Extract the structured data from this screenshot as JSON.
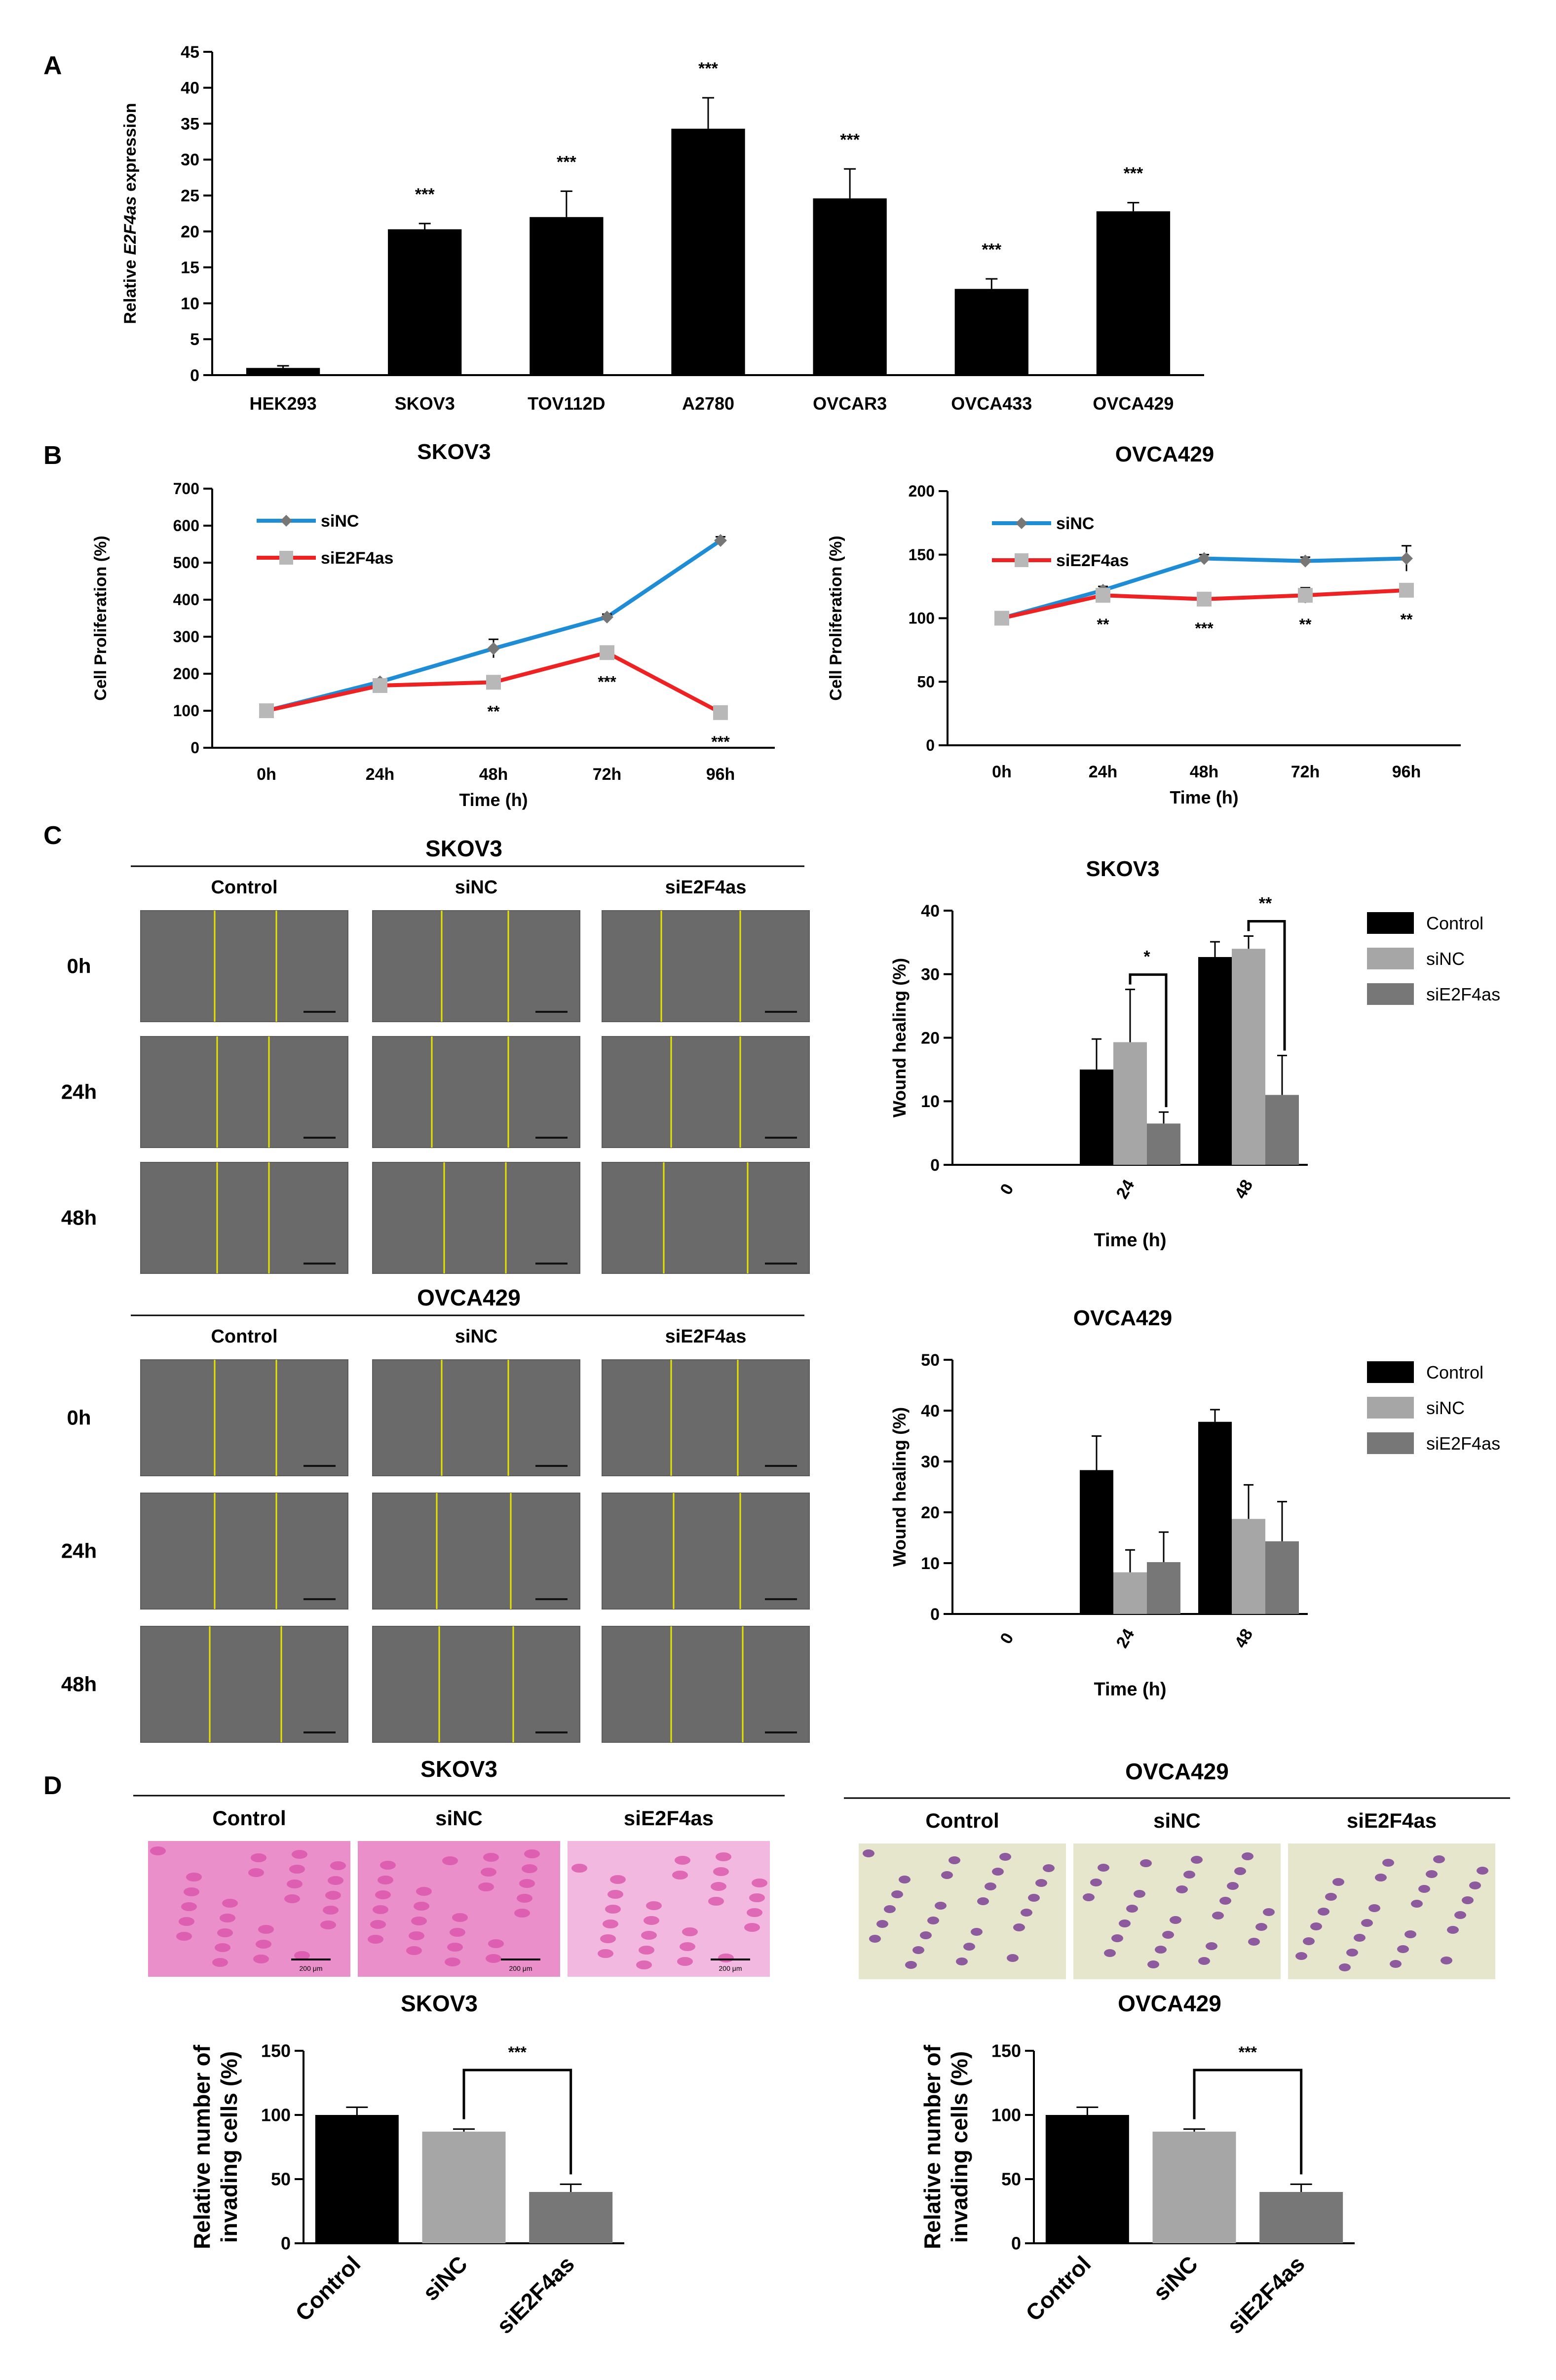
{
  "panel_labels": [
    "A",
    "B",
    "C",
    "D"
  ],
  "micro_labels": {
    "shared": [
      "0h",
      "24h",
      "48h",
      "Control",
      "siNC",
      "siE2F4as",
      "SKOV3",
      "OVCA429"
    ]
  },
  "chart_data": [
    {
      "id": "A",
      "type": "bar",
      "title": "",
      "ylabel": "Relative E2F4as expression",
      "ylabel_parts": [
        "Relative ",
        "E2F4as",
        " expression"
      ],
      "xlabel": "",
      "categories": [
        "HEK293",
        "SKOV3",
        "TOV112D",
        "A2780",
        "OVCAR3",
        "OVCA433",
        "OVCA429"
      ],
      "values": [
        1,
        20.3,
        22,
        34.3,
        24.6,
        12,
        22.8
      ],
      "errors": [
        0.3,
        0.8,
        3.6,
        4.3,
        4.1,
        1.4,
        1.2
      ],
      "significance": [
        "",
        "***",
        "***",
        "***",
        "***",
        "***",
        "***"
      ],
      "ylim": [
        0,
        45
      ],
      "yticks": [
        0,
        5,
        10,
        15,
        20,
        25,
        30,
        35,
        40,
        45
      ],
      "colors": {
        "bar": "#000000"
      }
    },
    {
      "id": "B1",
      "type": "line",
      "title": "SKOV3",
      "xlabel": "Time (h)",
      "ylabel": "Cell Proliferation (%)",
      "categories": [
        "0h",
        "24h",
        "48h",
        "72h",
        "96h"
      ],
      "ylim": [
        0,
        700
      ],
      "yticks": [
        0,
        100,
        200,
        300,
        400,
        500,
        600,
        700
      ],
      "series": [
        {
          "name": "siNC",
          "values": [
            100,
            178,
            268,
            353,
            560
          ],
          "errors": [
            0,
            5,
            25,
            8,
            10
          ],
          "color": "#1f8dd6"
        },
        {
          "name": "siE2F4as",
          "values": [
            100,
            168,
            177,
            257,
            95
          ],
          "errors": [
            0,
            6,
            10,
            6,
            4
          ],
          "color": "#ee2222"
        }
      ],
      "significance": [
        "",
        "",
        "**",
        "***",
        "***"
      ]
    },
    {
      "id": "B2",
      "type": "line",
      "title": "OVCA429",
      "xlabel": "Time (h)",
      "ylabel": "Cell Proliferation (%)",
      "categories": [
        "0h",
        "24h",
        "48h",
        "72h",
        "96h"
      ],
      "ylim": [
        0,
        200
      ],
      "yticks": [
        0,
        50,
        100,
        150,
        200
      ],
      "series": [
        {
          "name": "siNC",
          "values": [
            100,
            122,
            147,
            145,
            147
          ],
          "errors": [
            0,
            3,
            3,
            3,
            10
          ],
          "color": "#1f8dd6"
        },
        {
          "name": "siE2F4as",
          "values": [
            100,
            118,
            115,
            118,
            122
          ],
          "errors": [
            0,
            3,
            2,
            6,
            3
          ],
          "color": "#ee2222"
        }
      ],
      "significance": [
        "",
        "**",
        "***",
        "**",
        "**"
      ]
    },
    {
      "id": "C1",
      "type": "bar",
      "title": "SKOV3",
      "xlabel": "Time (h)",
      "ylabel": "Wound healing (%)",
      "categories": [
        "0",
        "24",
        "48"
      ],
      "ylim": [
        0,
        40
      ],
      "yticks": [
        0,
        10,
        20,
        30,
        40
      ],
      "series": [
        {
          "name": "Control",
          "values": [
            0,
            15,
            32.7
          ],
          "errors": [
            0,
            4.8,
            2.4
          ],
          "color": "#000000"
        },
        {
          "name": "siNC",
          "values": [
            0,
            19.3,
            34
          ],
          "errors": [
            0,
            8.3,
            2
          ],
          "color": "#a6a6a6"
        },
        {
          "name": "siE2F4as",
          "values": [
            0,
            6.5,
            11
          ],
          "errors": [
            0,
            1.8,
            6.2
          ],
          "color": "#777777"
        }
      ],
      "brackets": [
        {
          "category": "24",
          "label": "*"
        },
        {
          "category": "48",
          "label": "**"
        }
      ]
    },
    {
      "id": "C2",
      "type": "bar",
      "title": "OVCA429",
      "xlabel": "Time (h)",
      "ylabel": "Wound healing (%)",
      "categories": [
        "0",
        "24",
        "48"
      ],
      "ylim": [
        0,
        50
      ],
      "yticks": [
        0,
        10,
        20,
        30,
        40,
        50
      ],
      "series": [
        {
          "name": "Control",
          "values": [
            0,
            28.3,
            37.8
          ],
          "errors": [
            0,
            6.7,
            2.4
          ],
          "color": "#000000"
        },
        {
          "name": "siNC",
          "values": [
            0,
            8.2,
            18.7
          ],
          "errors": [
            0,
            4.4,
            6.7
          ],
          "color": "#a6a6a6"
        },
        {
          "name": "siE2F4as",
          "values": [
            0,
            10.2,
            14.3
          ],
          "errors": [
            0,
            5.9,
            7.8
          ],
          "color": "#777777"
        }
      ],
      "brackets": []
    },
    {
      "id": "D1",
      "type": "bar",
      "title": "SKOV3",
      "xlabel": "",
      "ylabel": "Relative number of invading cells (%)",
      "ylabel_lines": [
        "Relative number of",
        "invading cells (%)"
      ],
      "categories": [
        "Control",
        "siNC",
        "siE2F4as"
      ],
      "values": [
        100,
        87,
        40
      ],
      "errors": [
        6,
        2,
        6
      ],
      "colors": [
        "#000000",
        "#a6a6a6",
        "#777777"
      ],
      "ylim": [
        0,
        150
      ],
      "yticks": [
        0,
        50,
        100,
        150
      ],
      "bracket": {
        "from": "siNC",
        "to": "siE2F4as",
        "label": "***"
      }
    },
    {
      "id": "D2",
      "type": "bar",
      "title": "OVCA429",
      "xlabel": "",
      "ylabel": "Relative number of invading cells (%)",
      "ylabel_lines": [
        "Relative number of",
        "invading cells (%)"
      ],
      "categories": [
        "Control",
        "siNC",
        "siE2F4as"
      ],
      "values": [
        100,
        87,
        40
      ],
      "errors": [
        6,
        2,
        6
      ],
      "colors": [
        "#000000",
        "#a6a6a6",
        "#777777"
      ],
      "ylim": [
        0,
        150
      ],
      "yticks": [
        0,
        50,
        100,
        150
      ],
      "bracket": {
        "from": "siNC",
        "to": "siE2F4as",
        "label": "***"
      }
    }
  ],
  "wound_assay": [
    {
      "id": "C-SKOV3",
      "title": "SKOV3",
      "columns": [
        "Control",
        "siNC",
        "siE2F4as"
      ],
      "rows": [
        "0h",
        "24h",
        "48h"
      ]
    },
    {
      "id": "C-OVCA429",
      "title": "OVCA429",
      "columns": [
        "Control",
        "siNC",
        "siE2F4as"
      ],
      "rows": [
        "0h",
        "24h",
        "48h"
      ]
    }
  ],
  "invasion_assay": [
    {
      "id": "D-SKOV3",
      "title": "SKOV3",
      "columns": [
        "Control",
        "siNC",
        "siE2F4as"
      ],
      "scale_label": "200 μm",
      "stain": "pink"
    },
    {
      "id": "D-OVCA429",
      "title": "OVCA429",
      "columns": [
        "Control",
        "siNC",
        "siE2F4as"
      ],
      "stain": "purple"
    }
  ]
}
